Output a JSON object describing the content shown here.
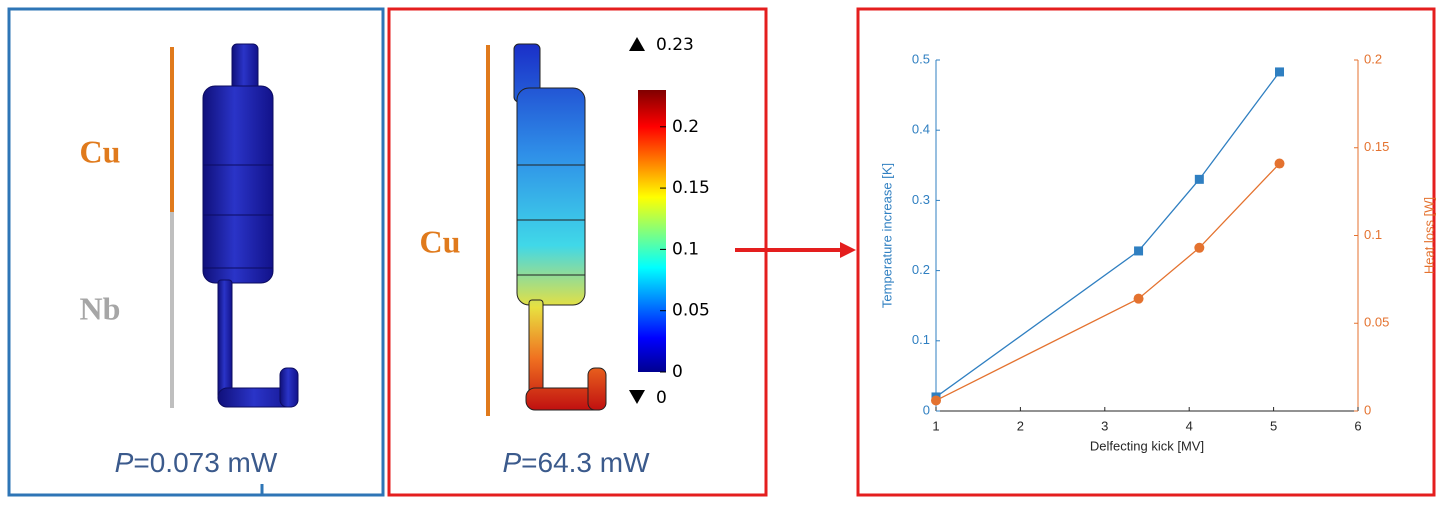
{
  "panels": [
    {
      "labels": [
        "Cu",
        "Nb"
      ],
      "power": {
        "symbol": "P",
        "rest": "=0.073 mW"
      }
    },
    {
      "labels": [
        "Cu"
      ],
      "power": {
        "symbol": "P",
        "rest": "=64.3 mW"
      }
    }
  ],
  "colorbar": {
    "range": [
      0,
      0.23
    ],
    "ticks": [
      0,
      0.05,
      0.1,
      0.15,
      0.2
    ]
  },
  "chart_data": {
    "type": "line",
    "x": [
      1,
      3.4,
      4.12,
      5.07
    ],
    "xlabel": "Delfecting kick [MV]",
    "ylabel": "Temperature increase [K]",
    "y2label": "Heat loss [W]",
    "xlim": [
      1,
      6
    ],
    "xticks": [
      1,
      2,
      3,
      4,
      5,
      6
    ],
    "ylim": [
      0,
      0.5
    ],
    "yticks": [
      0,
      0.1,
      0.2,
      0.3,
      0.4,
      0.5
    ],
    "y2lim": [
      0,
      0.2
    ],
    "y2ticks": [
      0,
      0.05,
      0.1,
      0.15,
      0.2
    ],
    "series": [
      {
        "color": "#2f7fc1",
        "marker": "square",
        "values": [
          0.02,
          0.228,
          0.33,
          0.483
        ]
      },
      {
        "color": "#e4722f",
        "marker": "circle",
        "axis": "y2",
        "values": [
          0.006,
          0.064,
          0.093,
          0.141
        ]
      }
    ]
  }
}
